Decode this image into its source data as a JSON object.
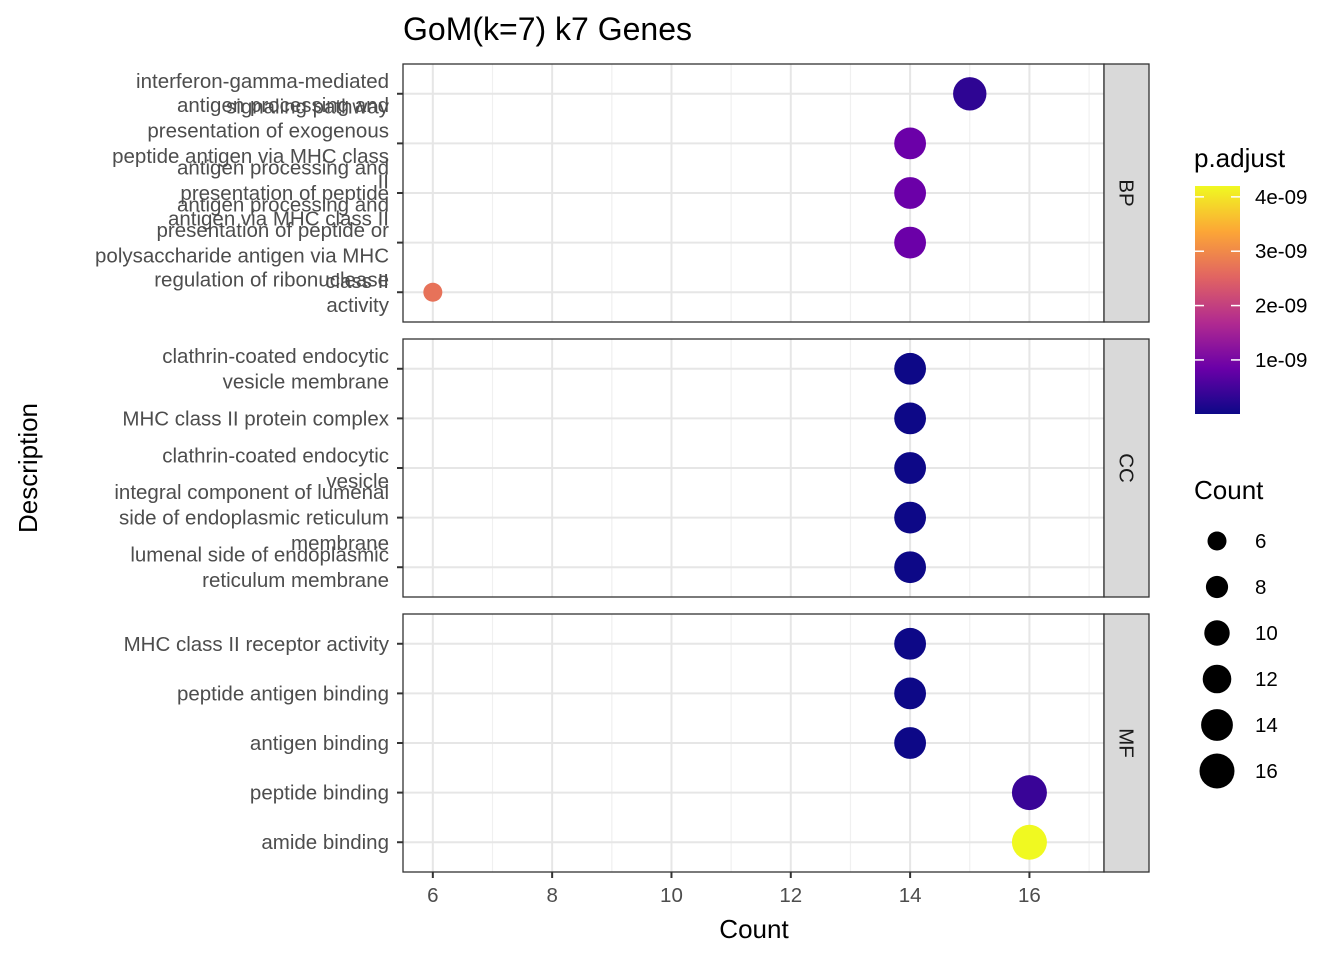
{
  "chart_data": {
    "type": "scatter",
    "title": "GoM(k=7) k7 Genes",
    "xlabel": "Count",
    "ylabel": "Description",
    "xlim": [
      5.5,
      17.25
    ],
    "x_ticks": [
      6,
      8,
      10,
      12,
      14,
      16
    ],
    "grid": true,
    "legend_position": "right",
    "facets": [
      {
        "strip": "BP",
        "points": [
          {
            "label": "interferon-gamma-mediated signaling pathway",
            "lines": [
              "interferon-gamma-mediated",
              "signaling pathway"
            ],
            "x": 15,
            "p_adjust": 3e-10
          },
          {
            "label": "antigen processing and presentation of exogenous peptide antigen via MHC class II",
            "lines": [
              "antigen processing and",
              "presentation of exogenous",
              "peptide antigen via MHC class",
              "II"
            ],
            "x": 14,
            "p_adjust": 8.5e-10
          },
          {
            "label": "antigen processing and presentation of peptide antigen via MHC class II",
            "lines": [
              "antigen processing and",
              "presentation of peptide",
              "antigen via MHC class II"
            ],
            "x": 14,
            "p_adjust": 8.5e-10
          },
          {
            "label": "antigen processing and presentation of peptide or polysaccharide antigen via MHC class II",
            "lines": [
              "antigen processing and",
              "presentation of peptide or",
              "polysaccharide antigen via MHC",
              "class II"
            ],
            "x": 14,
            "p_adjust": 8.5e-10
          },
          {
            "label": "regulation of ribonuclease activity",
            "lines": [
              "regulation of ribonuclease",
              "activity"
            ],
            "x": 6,
            "p_adjust": 2.7e-09
          }
        ]
      },
      {
        "strip": "CC",
        "points": [
          {
            "label": "clathrin-coated endocytic vesicle membrane",
            "lines": [
              "clathrin-coated endocytic",
              "vesicle membrane"
            ],
            "x": 14,
            "p_adjust": 5e-12
          },
          {
            "label": "MHC class II protein complex",
            "lines": [
              "MHC class II protein complex"
            ],
            "x": 14,
            "p_adjust": 5e-12
          },
          {
            "label": "clathrin-coated endocytic vesicle",
            "lines": [
              "clathrin-coated endocytic",
              "vesicle"
            ],
            "x": 14,
            "p_adjust": 5e-12
          },
          {
            "label": "integral component of lumenal side of endoplasmic reticulum membrane",
            "lines": [
              "integral component of lumenal",
              "side of endoplasmic reticulum",
              "membrane"
            ],
            "x": 14,
            "p_adjust": 5e-12
          },
          {
            "label": "lumenal side of endoplasmic reticulum membrane",
            "lines": [
              "lumenal side of endoplasmic",
              "reticulum membrane"
            ],
            "x": 14,
            "p_adjust": 5e-12
          }
        ]
      },
      {
        "strip": "MF",
        "points": [
          {
            "label": "MHC class II receptor activity",
            "lines": [
              "MHC class II receptor activity"
            ],
            "x": 14,
            "p_adjust": 5e-12
          },
          {
            "label": "peptide antigen binding",
            "lines": [
              "peptide antigen binding"
            ],
            "x": 14,
            "p_adjust": 5e-12
          },
          {
            "label": "antigen binding",
            "lines": [
              "antigen binding"
            ],
            "x": 14,
            "p_adjust": 5e-12
          },
          {
            "label": "peptide binding",
            "lines": [
              "peptide binding"
            ],
            "x": 16,
            "p_adjust": 4e-10
          },
          {
            "label": "amide binding",
            "lines": [
              "amide binding"
            ],
            "x": 16,
            "p_adjust": 4.2e-09
          }
        ]
      }
    ],
    "color_legend": {
      "title": "p.adjust",
      "range": [
        5e-12,
        4.2e-09
      ],
      "breaks": [
        {
          "label": "1e-09",
          "value": 1e-09
        },
        {
          "label": "2e-09",
          "value": 2e-09
        },
        {
          "label": "3e-09",
          "value": 3e-09
        },
        {
          "label": "4e-09",
          "value": 4e-09
        }
      ],
      "colors": [
        "#0d0887",
        "#6a00a8",
        "#b12a90",
        "#e16462",
        "#fca636",
        "#f0f921"
      ]
    },
    "size_legend": {
      "title": "Count",
      "breaks": [
        6,
        8,
        10,
        12,
        14,
        16
      ]
    }
  }
}
